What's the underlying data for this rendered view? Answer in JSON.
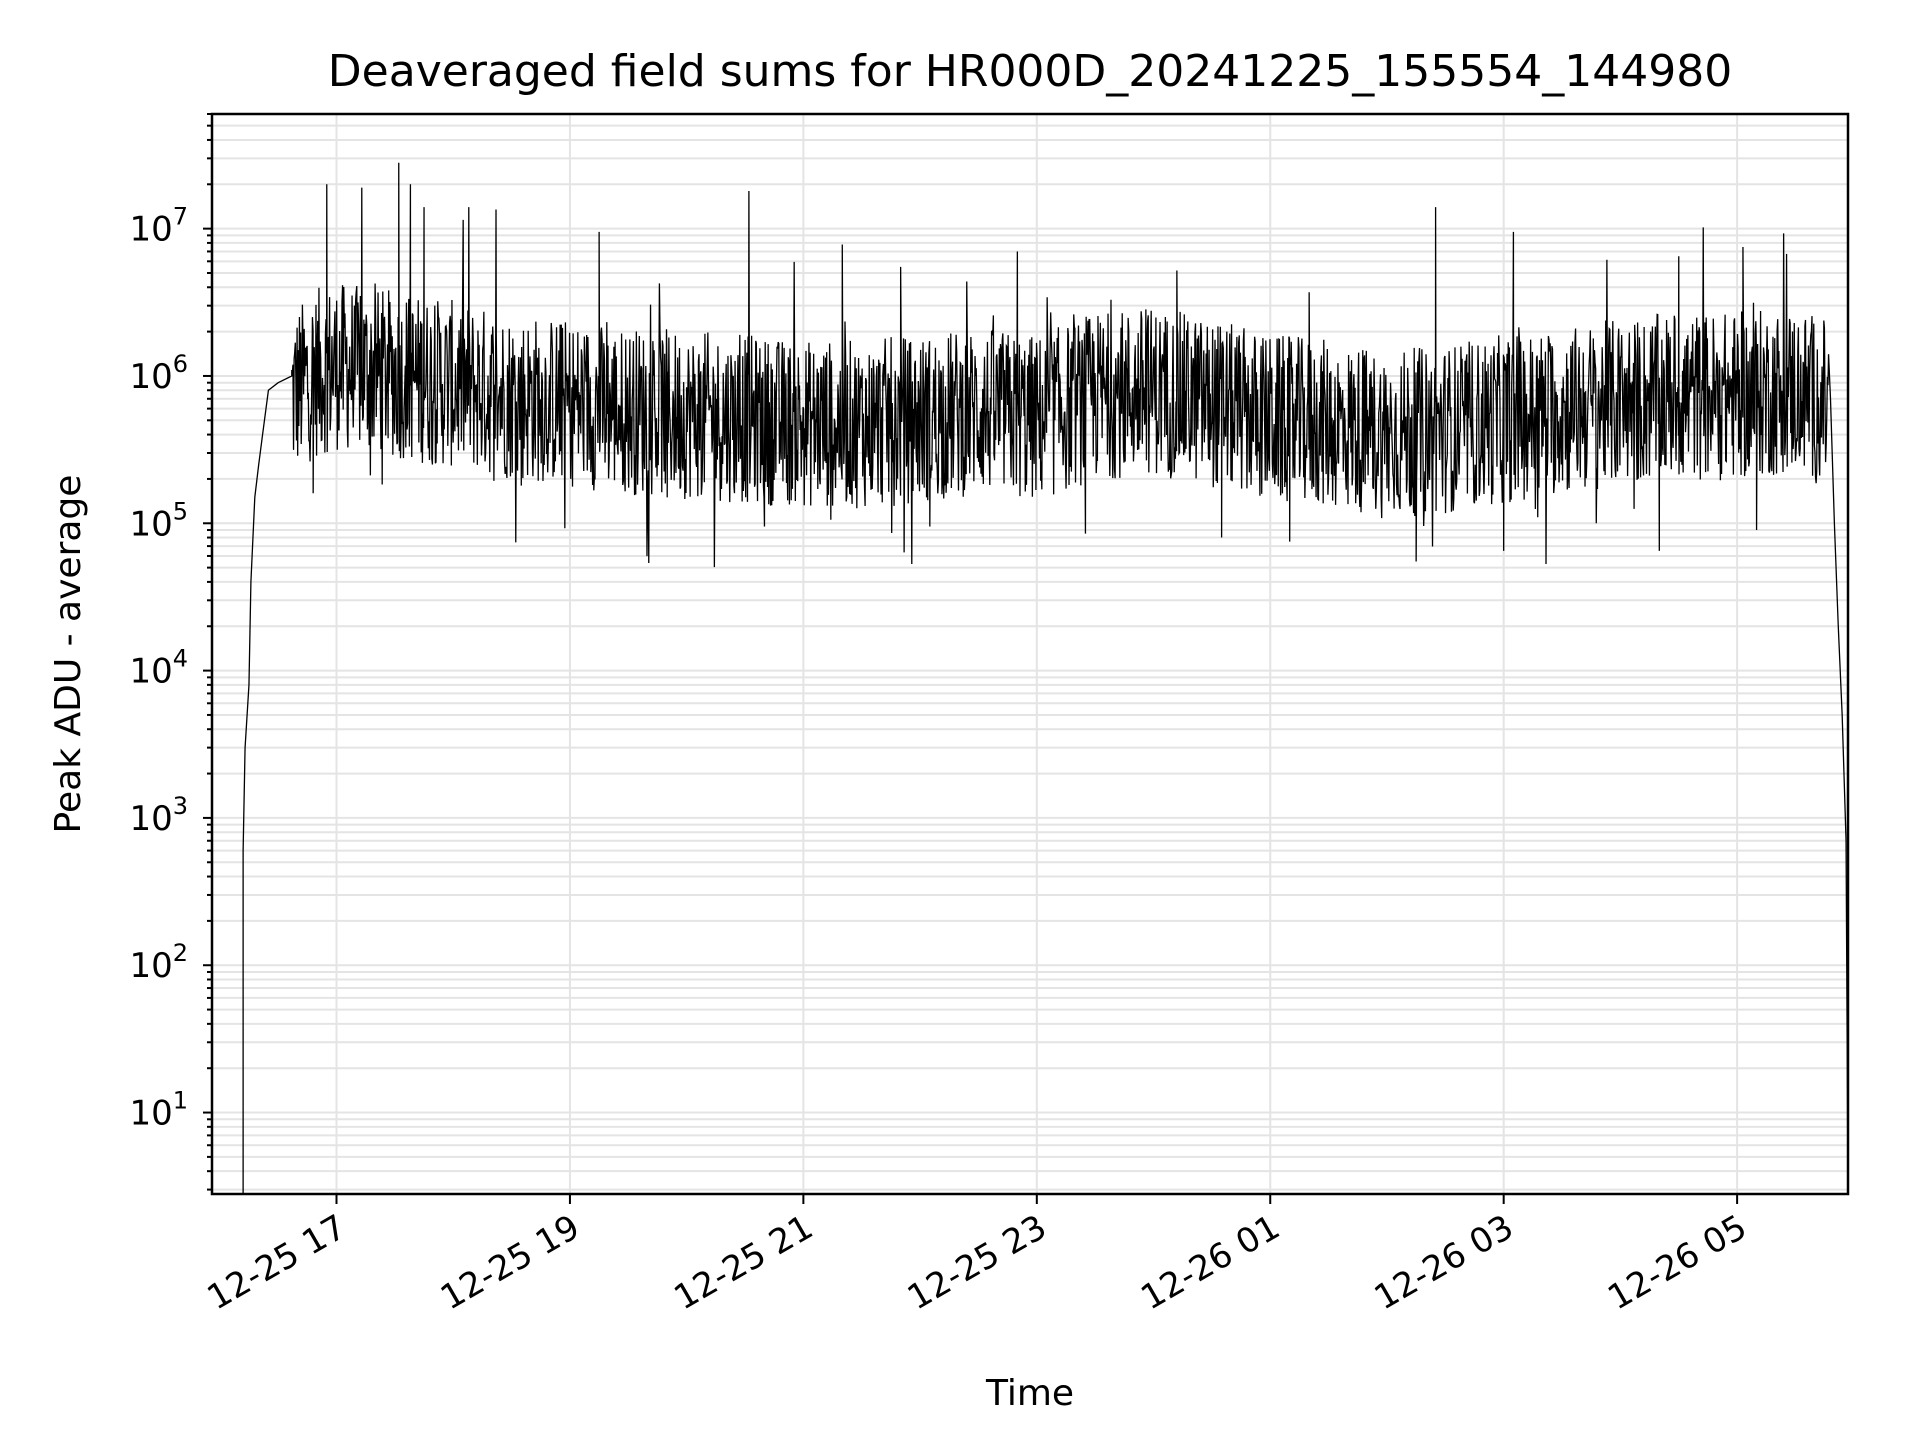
{
  "chart_data": {
    "type": "line",
    "title": "Deaveraged field sums for HR000D_20241225_155554_144980",
    "xlabel": "Time",
    "ylabel": "Peak ADU - average",
    "yscale": "log",
    "ylim": [
      2.8,
      60000000
    ],
    "xlim": [
      "2024-12-25 15:56",
      "2024-12-26 05:57"
    ],
    "grid": true,
    "legend": "none",
    "line_color": "#000000",
    "x_tick_labels": [
      "12-25 17",
      "12-25 19",
      "12-25 21",
      "12-25 23",
      "12-26 01",
      "12-26 03",
      "12-26 05"
    ],
    "x_ticks": [
      "2024-12-25 17:00",
      "2024-12-25 19:00",
      "2024-12-25 21:00",
      "2024-12-25 23:00",
      "2024-12-26 01:00",
      "2024-12-26 03:00",
      "2024-12-26 05:00"
    ],
    "y_ticks": [
      {
        "value": 10,
        "base": "10",
        "exp": "1"
      },
      {
        "value": 100,
        "base": "10",
        "exp": "2"
      },
      {
        "value": 1000,
        "base": "10",
        "exp": "3"
      },
      {
        "value": 10000,
        "base": "10",
        "exp": "4"
      },
      {
        "value": 100000,
        "base": "10",
        "exp": "5"
      },
      {
        "value": 1000000,
        "base": "10",
        "exp": "6"
      },
      {
        "value": 10000000,
        "base": "10",
        "exp": "7"
      }
    ],
    "series": [
      {
        "x": [
          "2024-12-25 16:12",
          "2024-12-25 16:12",
          "2024-12-25 16:13",
          "2024-12-25 16:15",
          "2024-12-25 16:16",
          "2024-12-25 16:18",
          "2024-12-25 16:20",
          "2024-12-25 16:22",
          "2024-12-25 16:25",
          "2024-12-25 16:30",
          "2024-12-25 16:37",
          "2024-12-25 16:45",
          "2024-12-25 16:52",
          "2024-12-25 17:00",
          "2024-12-25 17:30",
          "2024-12-25 18:00",
          "2024-12-25 18:30",
          "2024-12-25 19:00",
          "2024-12-25 19:30",
          "2024-12-25 20:00",
          "2024-12-25 20:30",
          "2024-12-25 21:00",
          "2024-12-25 21:30",
          "2024-12-25 22:00",
          "2024-12-25 22:30",
          "2024-12-25 23:00",
          "2024-12-25 23:30",
          "2024-12-26 00:00",
          "2024-12-26 00:30",
          "2024-12-26 01:00",
          "2024-12-26 01:30",
          "2024-12-26 02:00",
          "2024-12-26 02:30",
          "2024-12-26 03:00",
          "2024-12-26 03:30",
          "2024-12-26 04:00",
          "2024-12-26 04:30",
          "2024-12-26 05:00",
          "2024-12-26 05:30",
          "2024-12-26 05:45",
          "2024-12-26 05:48",
          "2024-12-26 05:50",
          "2024-12-26 05:52",
          "2024-12-26 05:54",
          "2024-12-26 05:56"
        ],
        "values": [
          2.8,
          600,
          3000,
          8000,
          40000,
          150000,
          250000,
          400000,
          800000,
          900000,
          1000000,
          1300000,
          1500000,
          1600000,
          1400000,
          1200000,
          1000000,
          900000,
          800000,
          750000,
          700000,
          650000,
          650000,
          700000,
          800000,
          700000,
          1000000,
          1100000,
          900000,
          700000,
          650000,
          550000,
          600000,
          700000,
          800000,
          900000,
          1000000,
          1000000,
          1100000,
          900000,
          700000,
          100000,
          20000,
          5000,
          700
        ]
      }
    ],
    "spikes": {
      "x": [
        "2024-12-25 16:55",
        "2024-12-25 17:13",
        "2024-12-25 17:32",
        "2024-12-25 17:38",
        "2024-12-25 17:45",
        "2024-12-25 18:08",
        "2024-12-25 18:22",
        "2024-12-25 19:15",
        "2024-12-25 20:32",
        "2024-12-25 21:20",
        "2024-12-25 21:50",
        "2024-12-25 22:50",
        "2024-12-26 00:12",
        "2024-12-26 01:20",
        "2024-12-26 02:25",
        "2024-12-26 03:05",
        "2024-12-26 04:30",
        "2024-12-26 05:03"
      ],
      "values": [
        20000000,
        19000000,
        28000000,
        20000000,
        14000000,
        14000000,
        13500000,
        9500000,
        18000000,
        7800000,
        5500000,
        7000000,
        5200000,
        3700000,
        14000000,
        9500000,
        6500000,
        7500000
      ]
    },
    "dips": {
      "x": [
        "2024-12-25 16:48",
        "2024-12-25 18:35",
        "2024-12-25 19:50",
        "2024-12-25 20:40",
        "2024-12-25 22:05",
        "2024-12-25 23:25",
        "2024-12-26 00:35",
        "2024-12-26 01:10",
        "2024-12-26 02:15",
        "2024-12-26 03:00",
        "2024-12-26 04:20",
        "2024-12-26 05:10"
      ],
      "values": [
        160000,
        180000,
        150000,
        95000,
        95000,
        85000,
        80000,
        75000,
        55000,
        65000,
        65000,
        90000
      ]
    }
  }
}
